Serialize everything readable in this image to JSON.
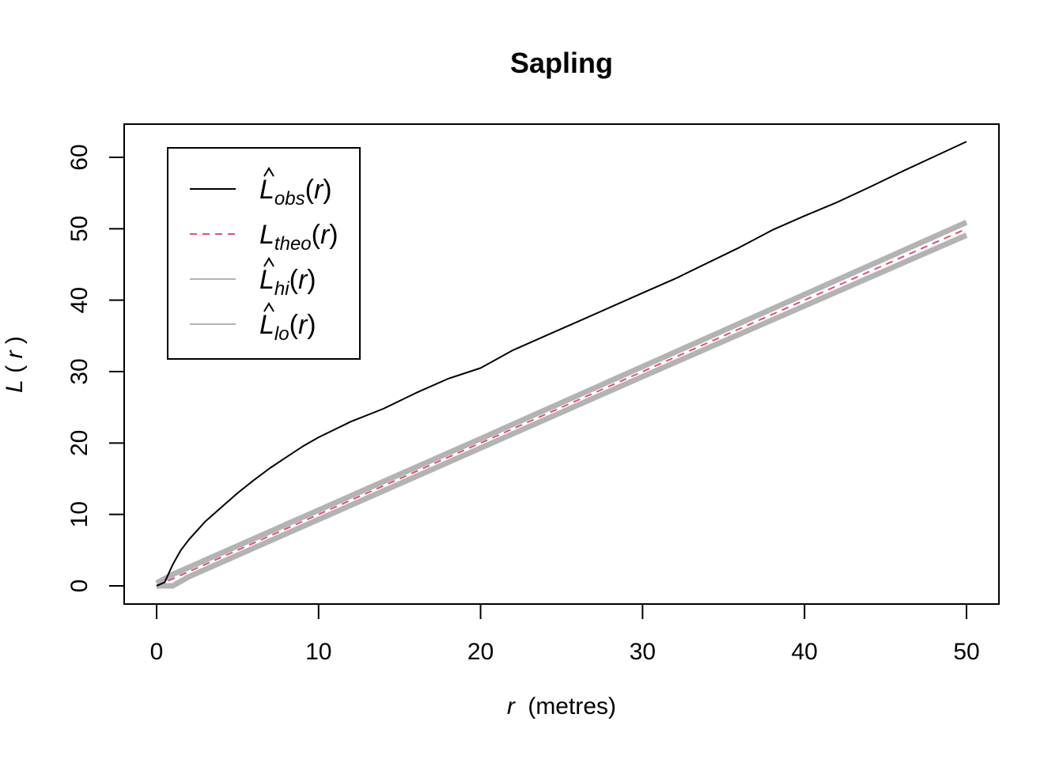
{
  "chart_data": {
    "type": "line",
    "title": "Sapling",
    "xlabel": {
      "italic": "r",
      "rest": "(metres)"
    },
    "ylabel": {
      "main": "L",
      "arg": "r"
    },
    "xlim": [
      0,
      50
    ],
    "ylim": [
      0,
      60
    ],
    "x_ticks": [
      0,
      10,
      20,
      30,
      40,
      50
    ],
    "y_ticks": [
      0,
      10,
      20,
      30,
      40,
      50,
      60
    ],
    "grid": false,
    "legend_position": "top-left",
    "series": [
      {
        "legend_main": "L",
        "legend_sub": "obs",
        "legend_arg": "r",
        "hat": true,
        "color": "#000000",
        "style": "solid",
        "x": [
          0,
          0.5,
          1,
          1.5,
          2,
          3,
          4,
          5,
          6,
          7,
          8,
          9,
          10,
          12,
          14,
          16,
          18,
          20,
          22,
          24,
          26,
          28,
          30,
          32,
          34,
          36,
          38,
          40,
          42,
          44,
          46,
          48,
          50
        ],
        "values": [
          0,
          0.5,
          3,
          5,
          6.5,
          9,
          11,
          13,
          14.8,
          16.5,
          18,
          19.5,
          20.8,
          23,
          24.8,
          27,
          29,
          30.5,
          33,
          35,
          37,
          39,
          41,
          43,
          45.2,
          47.4,
          49.8,
          51.8,
          53.7,
          55.8,
          58,
          60.1,
          62.2
        ]
      },
      {
        "legend_main": "L",
        "legend_sub": "theo",
        "legend_arg": "r",
        "hat": false,
        "color": "#df536b",
        "style": "dashed",
        "x": [
          0,
          50
        ],
        "values": [
          0,
          50
        ]
      },
      {
        "legend_main": "L",
        "legend_sub": "hi",
        "legend_arg": "r",
        "hat": true,
        "color": "#b3b3b3",
        "style": "solid",
        "x": [
          0,
          1,
          2,
          5,
          10,
          20,
          30,
          40,
          50
        ],
        "values": [
          0.4,
          1.6,
          2.6,
          5.6,
          10.6,
          20.6,
          30.7,
          40.8,
          50.9
        ]
      },
      {
        "legend_main": "L",
        "legend_sub": "lo",
        "legend_arg": "r",
        "hat": true,
        "color": "#b3b3b3",
        "style": "solid",
        "x": [
          0,
          1,
          2,
          5,
          10,
          20,
          30,
          40,
          50
        ],
        "values": [
          0,
          0,
          1.3,
          4.3,
          9.3,
          19.3,
          29.3,
          39.2,
          49.1
        ]
      }
    ]
  }
}
